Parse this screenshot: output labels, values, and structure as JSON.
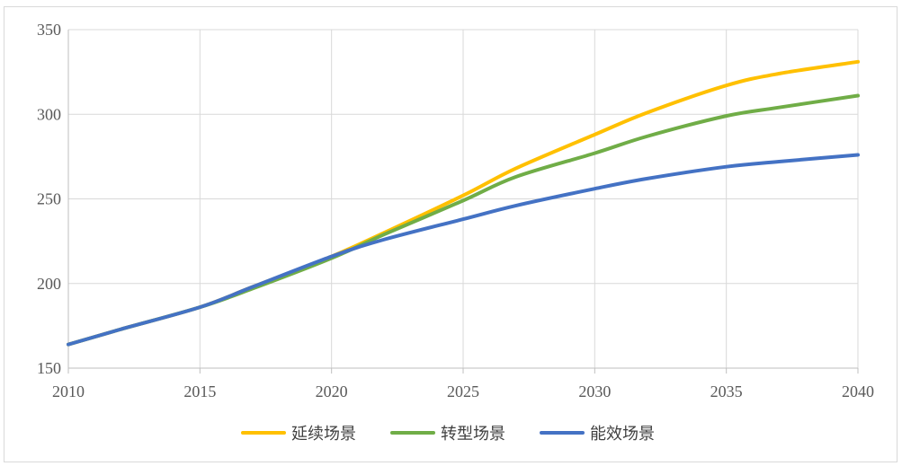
{
  "chart_data": {
    "type": "line",
    "title": "",
    "xlabel": "",
    "ylabel": "",
    "x": [
      2010,
      2012,
      2015,
      2017,
      2020,
      2022,
      2025,
      2027,
      2030,
      2032,
      2035,
      2037,
      2040
    ],
    "xticks": [
      "2010",
      "2015",
      "2020",
      "2025",
      "2030",
      "2035",
      "2040"
    ],
    "yticks": [
      "150",
      "200",
      "250",
      "300",
      "350"
    ],
    "xlim": [
      2010,
      2040
    ],
    "ylim": [
      150,
      350
    ],
    "grid": true,
    "legend_position": "bottom",
    "series": [
      {
        "name": "延续场景",
        "color": "#ffc000",
        "values": [
          164,
          173,
          186,
          198,
          216,
          230,
          252,
          268,
          288,
          301,
          317,
          324,
          331
        ]
      },
      {
        "name": "转型场景",
        "color": "#70ad47",
        "values": [
          164,
          173,
          186,
          197,
          215,
          229,
          249,
          263,
          277,
          287,
          299,
          304,
          311
        ]
      },
      {
        "name": "能效场景",
        "color": "#4472c4",
        "values": [
          164,
          173,
          186,
          198,
          216,
          226,
          238,
          246,
          256,
          262,
          269,
          272,
          276
        ]
      }
    ]
  }
}
